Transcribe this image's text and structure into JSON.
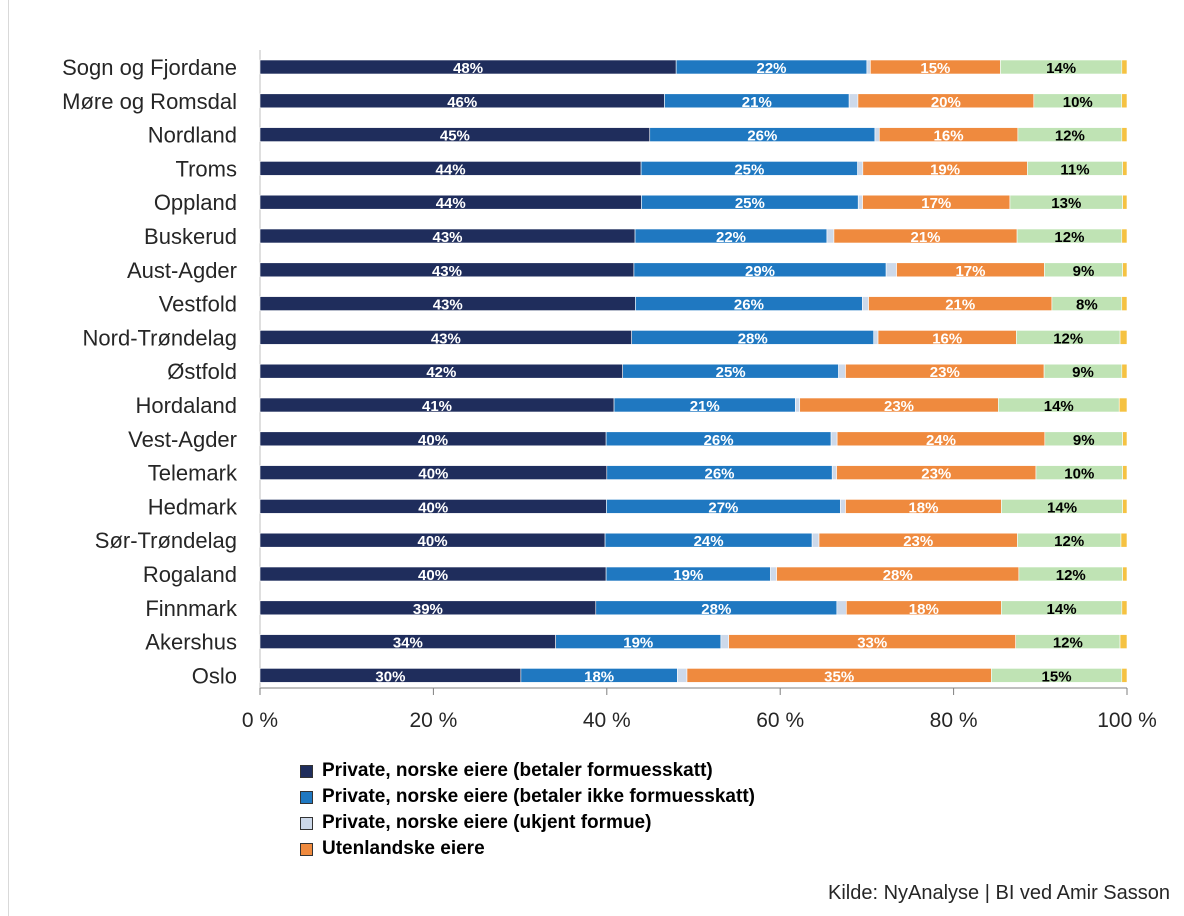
{
  "chart_data": {
    "type": "bar",
    "orientation": "horizontal",
    "stacked": true,
    "categories": [
      "Sogn og Fjordane",
      "Møre og Romsdal",
      "Nordland",
      "Troms",
      "Oppland",
      "Buskerud",
      "Aust-Agder",
      "Vestfold",
      "Nord-Trøndelag",
      "Østfold",
      "Hordaland",
      "Vest-Agder",
      "Telemark",
      "Hedmark",
      "Sør-Trøndelag",
      "Rogaland",
      "Finnmark",
      "Akershus",
      "Oslo"
    ],
    "series": [
      {
        "name": "Private, norske eiere (betaler formuesskatt)",
        "color": "#1f2d5c",
        "label_color": "#ffffff",
        "values": [
          48,
          46,
          45,
          44,
          44,
          43,
          43,
          43,
          43,
          42,
          41,
          40,
          40,
          40,
          40,
          40,
          39,
          34,
          30
        ],
        "labels": [
          "48%",
          "46%",
          "45%",
          "44%",
          "44%",
          "43%",
          "43%",
          "43%",
          "43%",
          "42%",
          "41%",
          "40%",
          "40%",
          "40%",
          "40%",
          "40%",
          "39%",
          "34%",
          "30%"
        ]
      },
      {
        "name": "Private, norske eiere (betaler ikke formuesskatt)",
        "color": "#1f78c1",
        "label_color": "#ffffff",
        "values": [
          22,
          21,
          26,
          25,
          25,
          22,
          29,
          26,
          28,
          25,
          21,
          26,
          26,
          27,
          24,
          19,
          28,
          19,
          18
        ],
        "labels": [
          "22%",
          "21%",
          "26%",
          "25%",
          "25%",
          "22%",
          "29%",
          "26%",
          "28%",
          "25%",
          "21%",
          "26%",
          "26%",
          "27%",
          "24%",
          "19%",
          "28%",
          "19%",
          "18%"
        ]
      },
      {
        "name": "Private, norske eiere (ukjent formue)",
        "color": "#cdd9ea",
        "label_color": "#000000",
        "values": [
          0.4,
          1,
          0.5,
          0.6,
          0.5,
          0.8,
          1.2,
          0.7,
          0.5,
          0.8,
          0.5,
          0.7,
          0.5,
          0.6,
          0.8,
          0.7,
          1.1,
          0.9,
          1.1
        ],
        "labels": []
      },
      {
        "name": "Utenlandske eiere",
        "color": "#ef8a3e",
        "label_color": "#ffffff",
        "values": [
          15,
          20,
          16,
          19,
          17,
          21,
          17,
          21,
          16,
          23,
          23,
          24,
          23,
          18,
          23,
          28,
          18,
          33,
          35
        ],
        "labels": [
          "15%",
          "20%",
          "16%",
          "19%",
          "17%",
          "21%",
          "17%",
          "21%",
          "16%",
          "23%",
          "23%",
          "24%",
          "23%",
          "18%",
          "23%",
          "28%",
          "18%",
          "33%",
          "35%"
        ]
      },
      {
        "name": "",
        "color": "#bfe3b4",
        "label_color": "#000000",
        "values": [
          14,
          10,
          12,
          11,
          13,
          12,
          9,
          8,
          12,
          9,
          14,
          9,
          10,
          14,
          12,
          12,
          14,
          12,
          15
        ],
        "labels": [
          "14%",
          "10%",
          "12%",
          "11%",
          "13%",
          "12%",
          "9%",
          "8%",
          "12%",
          "9%",
          "14%",
          "9%",
          "10%",
          "14%",
          "12%",
          "12%",
          "14%",
          "12%",
          "15%"
        ]
      },
      {
        "name": "",
        "color": "#f5c242",
        "label_color": "#000000",
        "values": [
          0.6,
          0.6,
          0.6,
          0.5,
          0.5,
          0.6,
          0.5,
          0.6,
          0.8,
          0.6,
          0.9,
          0.5,
          0.5,
          0.5,
          0.7,
          0.5,
          0.6,
          0.8,
          0.6
        ],
        "labels": []
      }
    ],
    "xlim": [
      0,
      100
    ],
    "xticks": [
      0,
      20,
      40,
      60,
      80,
      100
    ],
    "xtick_labels": [
      "0 %",
      "20 %",
      "40 %",
      "60 %",
      "80 %",
      "100 %"
    ],
    "legend_position": "bottom",
    "grid": false
  },
  "legend": [
    {
      "label": "Private, norske eiere (betaler formuesskatt)",
      "color": "#1f2d5c"
    },
    {
      "label": "Private, norske eiere (betaler ikke formuesskatt)",
      "color": "#1f78c1"
    },
    {
      "label": "Private, norske eiere (ukjent formue)",
      "color": "#cdd9ea"
    },
    {
      "label": "Utenlandske eiere",
      "color": "#ef8a3e"
    }
  ],
  "source": "Kilde: NyAnalyse | BI ved Amir Sasson"
}
